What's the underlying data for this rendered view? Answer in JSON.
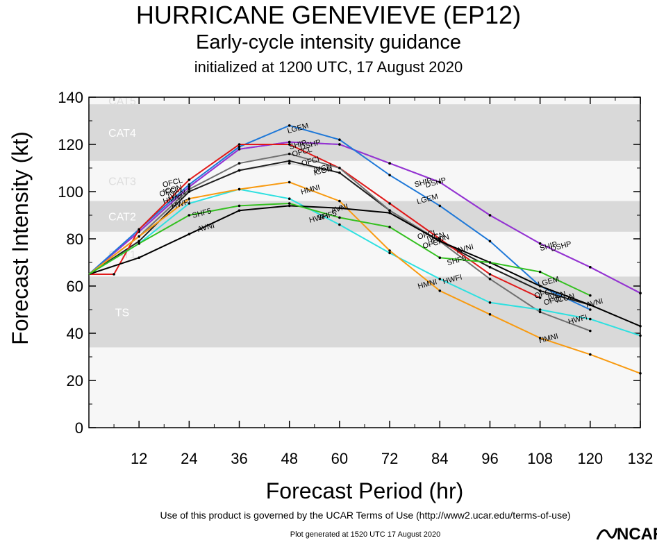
{
  "title": "HURRICANE GENEVIEVE (EP12)",
  "subtitle": "Early-cycle intensity guidance",
  "init_line": "initialized at 1200 UTC, 17 August 2020",
  "terms": "Use of this product is governed by the UCAR Terms of Use (http://www2.ucar.edu/terms-of-use)",
  "generated": "Plot generated at 1520 UTC   17 August 2020",
  "logo_text": "NCAR",
  "chart_data": {
    "type": "line",
    "xlabel": "Forecast Period (hr)",
    "ylabel": "Forecast Intensity (kt)",
    "xlim": [
      0,
      132
    ],
    "ylim": [
      0,
      140
    ],
    "xticks": [
      12,
      24,
      36,
      48,
      60,
      72,
      84,
      96,
      108,
      120,
      132
    ],
    "yticks": [
      0,
      20,
      40,
      60,
      80,
      100,
      120,
      140
    ],
    "grid": false,
    "bands": [
      {
        "label": "TS",
        "from": 34,
        "to": 64,
        "shade": true
      },
      {
        "label": "CAT1",
        "from": 64,
        "to": 83,
        "shade": false
      },
      {
        "label": "CAT2",
        "from": 83,
        "to": 96,
        "shade": true
      },
      {
        "label": "CAT3",
        "from": 96,
        "to": 113,
        "shade": false
      },
      {
        "label": "CAT4",
        "from": 113,
        "to": 137,
        "shade": true
      },
      {
        "label": "CAT5",
        "from": 137,
        "to": 140,
        "shade": false
      }
    ],
    "series": [
      {
        "name": "SHIP",
        "color": "#3c8be8",
        "x": [
          0,
          12,
          24,
          36,
          48,
          60,
          72,
          84,
          96,
          108,
          120,
          132
        ],
        "y": [
          65,
          83,
          102,
          118,
          121,
          120,
          112,
          104,
          90,
          78,
          68,
          57
        ],
        "labels": [
          {
            "x": 50,
            "y": 120,
            "text": "SHIP"
          },
          {
            "x": 80,
            "y": 104,
            "text": "SHIP"
          },
          {
            "x": 110,
            "y": 77,
            "text": "SHIP"
          }
        ]
      },
      {
        "name": "DSHP",
        "color": "#9b30d0",
        "x": [
          0,
          12,
          24,
          36,
          48,
          60,
          72,
          84,
          96,
          108,
          120,
          132
        ],
        "y": [
          65,
          83,
          102,
          118,
          121,
          120,
          112,
          104,
          90,
          78,
          68,
          57
        ],
        "labels": [
          {
            "x": 53,
            "y": 120,
            "text": "DSHP"
          },
          {
            "x": 83,
            "y": 104,
            "text": "DSHP"
          },
          {
            "x": 113,
            "y": 77,
            "text": "DSHP"
          }
        ]
      },
      {
        "name": "LGEM",
        "color": "#1e78d8",
        "x": [
          0,
          12,
          24,
          36,
          48,
          60,
          72,
          84,
          96,
          108,
          120
        ],
        "y": [
          65,
          84,
          103,
          119,
          128,
          122,
          107,
          94,
          79,
          60,
          50
        ],
        "labels": [
          {
            "x": 50,
            "y": 127,
            "text": "LGEM"
          },
          {
            "x": 81,
            "y": 97,
            "text": "LGEM"
          },
          {
            "x": 110,
            "y": 62,
            "text": "LGEM"
          }
        ]
      },
      {
        "name": "ICON",
        "color": "#d8d8d8",
        "x": [
          0,
          12,
          24,
          36,
          48,
          60,
          72,
          84,
          96,
          108,
          120
        ],
        "y": [
          65,
          79,
          100,
          109,
          112,
          108,
          92,
          79,
          68,
          58,
          52
        ],
        "labels": [
          {
            "x": 20,
            "y": 101,
            "text": "ICON"
          },
          {
            "x": 56,
            "y": 109,
            "text": "ICON"
          },
          {
            "x": 84,
            "y": 80,
            "text": "ICON"
          },
          {
            "x": 114,
            "y": 55,
            "text": "ICON"
          }
        ]
      },
      {
        "name": "IVCN",
        "color": "#202020",
        "x": [
          0,
          12,
          24,
          36,
          48,
          60,
          72,
          84,
          96,
          108,
          120
        ],
        "y": [
          65,
          79,
          100,
          109,
          113,
          108,
          92,
          79,
          68,
          58,
          52
        ],
        "labels": [
          {
            "x": 21,
            "y": 99,
            "text": "IVCN"
          },
          {
            "x": 56,
            "y": 110,
            "text": "IVCN"
          },
          {
            "x": 83,
            "y": 81,
            "text": "IVCN"
          },
          {
            "x": 112,
            "y": 56,
            "text": "IVCN"
          }
        ]
      },
      {
        "name": "OFCL",
        "color": "#e01a1a",
        "x": [
          0,
          6,
          12,
          24,
          36,
          48,
          60,
          72,
          84,
          96,
          108
        ],
        "y": [
          65,
          65,
          84,
          105,
          120,
          120,
          110,
          95,
          80,
          65,
          55
        ],
        "labels": [
          {
            "x": 20,
            "y": 104,
            "text": "OFCL"
          },
          {
            "x": 51,
            "y": 117,
            "text": "OFCL"
          },
          {
            "x": 81,
            "y": 82,
            "text": "OFCL"
          },
          {
            "x": 109,
            "y": 57,
            "text": "OFCL"
          }
        ]
      },
      {
        "name": "OFCI",
        "color": "#707070",
        "x": [
          0,
          12,
          24,
          36,
          48,
          60,
          72,
          84,
          96,
          108,
          120
        ],
        "y": [
          65,
          81,
          101,
          112,
          116,
          110,
          92,
          79,
          63,
          49,
          41
        ],
        "labels": [
          {
            "x": 19,
            "y": 100,
            "text": "OFCI"
          },
          {
            "x": 53,
            "y": 113,
            "text": "OFCI"
          },
          {
            "x": 82,
            "y": 78,
            "text": "OFCI"
          },
          {
            "x": 111,
            "y": 54,
            "text": "OFCI"
          }
        ]
      },
      {
        "name": "HWFI",
        "color": "#2ee0e0",
        "x": [
          0,
          12,
          24,
          36,
          48,
          60,
          72,
          84,
          96,
          108,
          120,
          132
        ],
        "y": [
          65,
          78,
          95,
          101,
          97,
          86,
          74,
          63,
          53,
          50,
          46,
          39
        ],
        "labels": [
          {
            "x": 22,
            "y": 95,
            "text": "HWFI"
          },
          {
            "x": 55,
            "y": 89,
            "text": "HWFI"
          },
          {
            "x": 87,
            "y": 63,
            "text": "HWFI"
          },
          {
            "x": 117,
            "y": 46,
            "text": "HWFI"
          }
        ]
      },
      {
        "name": "HMNI",
        "color": "#f89a10",
        "x": [
          0,
          12,
          24,
          36,
          48,
          60,
          72,
          84,
          96,
          108,
          120,
          132
        ],
        "y": [
          65,
          81,
          97,
          101,
          104,
          96,
          75,
          58,
          48,
          38,
          31,
          23
        ],
        "labels": [
          {
            "x": 20,
            "y": 97,
            "text": "HMNI"
          },
          {
            "x": 53,
            "y": 101,
            "text": "HMNI"
          },
          {
            "x": 81,
            "y": 61,
            "text": "HMNI"
          },
          {
            "x": 110,
            "y": 38,
            "text": "HMNI"
          }
        ]
      },
      {
        "name": "AVNI",
        "color": "#000000",
        "x": [
          0,
          12,
          24,
          36,
          48,
          60,
          72,
          84,
          96,
          108,
          120,
          132
        ],
        "y": [
          65,
          72,
          82,
          92,
          94,
          93,
          91,
          79,
          70,
          60,
          52,
          43
        ],
        "labels": [
          {
            "x": 28,
            "y": 85,
            "text": "AVNI"
          },
          {
            "x": 60,
            "y": 93,
            "text": "AVNI"
          },
          {
            "x": 90,
            "y": 76,
            "text": "AVNI"
          },
          {
            "x": 121,
            "y": 53,
            "text": "AVNI"
          }
        ]
      },
      {
        "name": "SHF5",
        "color": "#34c020",
        "x": [
          0,
          12,
          24,
          36,
          48,
          60,
          72,
          84,
          96,
          108,
          120
        ],
        "y": [
          65,
          78,
          90,
          94,
          95,
          89,
          85,
          72,
          70,
          66,
          56
        ],
        "labels": [
          {
            "x": 27,
            "y": 91,
            "text": "SHF5"
          },
          {
            "x": 57,
            "y": 90,
            "text": "SHF5"
          },
          {
            "x": 88,
            "y": 71,
            "text": "SHF5"
          }
        ]
      }
    ]
  }
}
